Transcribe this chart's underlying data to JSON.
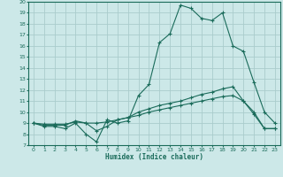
{
  "xlabel": "Humidex (Indice chaleur)",
  "xlim": [
    -0.5,
    23.5
  ],
  "ylim": [
    7,
    20
  ],
  "yticks": [
    7,
    8,
    9,
    10,
    11,
    12,
    13,
    14,
    15,
    16,
    17,
    18,
    19,
    20
  ],
  "xticks": [
    0,
    1,
    2,
    3,
    4,
    5,
    6,
    7,
    8,
    9,
    10,
    11,
    12,
    13,
    14,
    15,
    16,
    17,
    18,
    19,
    20,
    21,
    22,
    23
  ],
  "bg_color": "#cce8e8",
  "plot_bg_color": "#cce8e8",
  "line_color": "#1a6b5a",
  "grid_color": "#b0d4d4",
  "line1": {
    "x": [
      0,
      1,
      2,
      3,
      4,
      5,
      6,
      7,
      8,
      9,
      10,
      11,
      12,
      13,
      14,
      15,
      16,
      17,
      18,
      19,
      20,
      21,
      22,
      23
    ],
    "y": [
      9.0,
      8.7,
      8.7,
      8.5,
      9.0,
      8.0,
      7.3,
      9.3,
      9.0,
      9.2,
      11.5,
      12.5,
      16.3,
      17.1,
      19.7,
      19.4,
      18.5,
      18.3,
      19.0,
      16.0,
      15.5,
      12.7,
      10.0,
      9.0
    ]
  },
  "line2": {
    "x": [
      0,
      1,
      2,
      3,
      4,
      5,
      6,
      7,
      8,
      9,
      10,
      11,
      12,
      13,
      14,
      15,
      16,
      17,
      18,
      19,
      20,
      21,
      22,
      23
    ],
    "y": [
      9.0,
      8.8,
      8.8,
      8.8,
      9.2,
      9.0,
      8.3,
      8.7,
      9.3,
      9.5,
      10.0,
      10.3,
      10.6,
      10.8,
      11.0,
      11.3,
      11.6,
      11.8,
      12.1,
      12.3,
      11.0,
      9.8,
      8.5,
      8.5
    ]
  },
  "line3": {
    "x": [
      0,
      1,
      2,
      3,
      4,
      5,
      6,
      7,
      8,
      9,
      10,
      11,
      12,
      13,
      14,
      15,
      16,
      17,
      18,
      19,
      20,
      21,
      22,
      23
    ],
    "y": [
      9.0,
      8.9,
      8.9,
      8.9,
      9.1,
      9.0,
      9.0,
      9.1,
      9.3,
      9.5,
      9.7,
      10.0,
      10.2,
      10.4,
      10.6,
      10.8,
      11.0,
      11.2,
      11.4,
      11.5,
      11.0,
      10.0,
      8.5,
      8.5
    ]
  }
}
